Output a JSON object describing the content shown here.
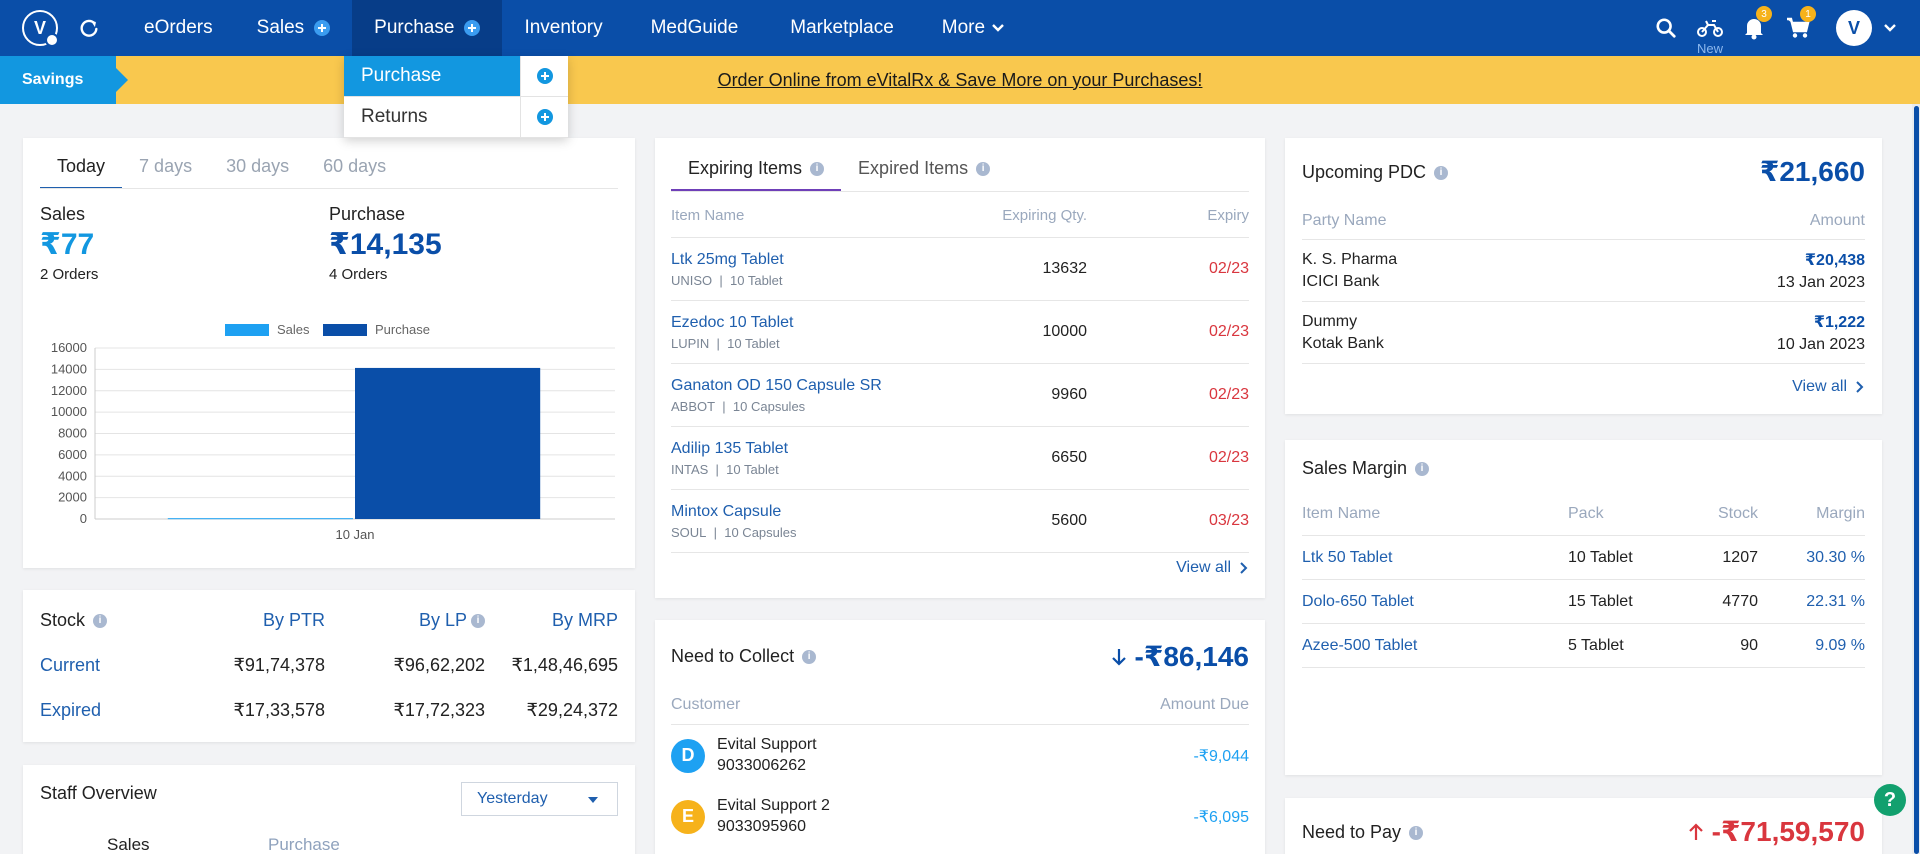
{
  "nav": {
    "items": [
      {
        "label": "eOrders"
      },
      {
        "label": "Sales"
      },
      {
        "label": "Purchase"
      },
      {
        "label": "Inventory"
      },
      {
        "label": "MedGuide"
      },
      {
        "label": "Marketplace"
      },
      {
        "label": "More"
      }
    ],
    "bike_new_label": "New",
    "notifications_count": "3",
    "cart_count": "1"
  },
  "banner": {
    "tag": "Savings",
    "text": "Order Online from eVitalRx & Save More on your Purchases!"
  },
  "dropdown": {
    "items": [
      {
        "label": "Purchase"
      },
      {
        "label": "Returns"
      }
    ]
  },
  "summary": {
    "tabs": [
      "Today",
      "7 days",
      "30 days",
      "60 days"
    ],
    "sales_label": "Sales",
    "sales_value": "₹77",
    "sales_orders": "2 Orders",
    "purchase_label": "Purchase",
    "purchase_value": "₹14,135",
    "purchase_orders": "4 Orders"
  },
  "chart_data": {
    "type": "bar",
    "categories": [
      "10 Jan"
    ],
    "series": [
      {
        "name": "Sales",
        "values": [
          77
        ],
        "color": "#1ea1f2"
      },
      {
        "name": "Purchase",
        "values": [
          14135
        ],
        "color": "#0a4ea8"
      }
    ],
    "ylim": [
      0,
      16000
    ],
    "yticks": [
      "0",
      "2000",
      "4000",
      "6000",
      "8000",
      "10000",
      "12000",
      "14000",
      "16000"
    ],
    "legend": "top-center",
    "grid": true
  },
  "stock": {
    "title": "Stock",
    "headers": [
      "By PTR",
      "By LP",
      "By MRP"
    ],
    "rows": [
      {
        "label": "Current",
        "ptr": "₹91,74,378",
        "lp": "₹96,62,202",
        "mrp": "₹1,48,46,695"
      },
      {
        "label": "Expired",
        "ptr": "₹17,33,578",
        "lp": "₹17,72,323",
        "mrp": "₹29,24,372"
      }
    ]
  },
  "staff": {
    "title": "Staff Overview",
    "period": "Yesterday",
    "col1": "Sales",
    "col2": "Purchase"
  },
  "expiring": {
    "tab1": "Expiring Items",
    "tab2": "Expired Items",
    "headers": [
      "Item Name",
      "Expiring Qty.",
      "Expiry"
    ],
    "rows": [
      {
        "name": "Ltk 25mg Tablet",
        "maker": "UNISO",
        "pack": "10 Tablet",
        "qty": "13632",
        "expiry": "02/23"
      },
      {
        "name": "Ezedoc 10 Tablet",
        "maker": "LUPIN",
        "pack": "10 Tablet",
        "qty": "10000",
        "expiry": "02/23"
      },
      {
        "name": "Ganaton OD 150 Capsule SR",
        "maker": "ABBOT",
        "pack": "10 Capsules",
        "qty": "9960",
        "expiry": "02/23"
      },
      {
        "name": "Adilip 135 Tablet",
        "maker": "INTAS",
        "pack": "10 Tablet",
        "qty": "6650",
        "expiry": "02/23"
      },
      {
        "name": "Mintox Capsule",
        "maker": "SOUL",
        "pack": "10 Capsules",
        "qty": "5600",
        "expiry": "03/23"
      }
    ],
    "view_all": "View all"
  },
  "collect": {
    "title": "Need to Collect",
    "total": "-₹86,146",
    "headers": [
      "Customer",
      "Amount Due"
    ],
    "rows": [
      {
        "initial": "D",
        "name": "Evital Support",
        "phone": "9033006262",
        "amount": "-₹9,044",
        "color": "#1ea1f2"
      },
      {
        "initial": "E",
        "name": "Evital Support 2",
        "phone": "9033095960",
        "amount": "-₹6,095",
        "color": "#f6b21b"
      }
    ]
  },
  "pdc": {
    "title": "Upcoming PDC",
    "total": "₹21,660",
    "headers": [
      "Party Name",
      "Amount"
    ],
    "rows": [
      {
        "party": "K. S. Pharma",
        "bank": "ICICI Bank",
        "amount": "₹20,438",
        "date": "13 Jan 2023"
      },
      {
        "party": "Dummy",
        "bank": "Kotak Bank",
        "amount": "₹1,222",
        "date": "10 Jan 2023"
      }
    ],
    "view_all": "View all"
  },
  "margin": {
    "title": "Sales Margin",
    "headers": [
      "Item Name",
      "Pack",
      "Stock",
      "Margin"
    ],
    "rows": [
      {
        "name": "Ltk 50 Tablet",
        "pack": "10 Tablet",
        "stock": "1207",
        "margin": "30.30 %"
      },
      {
        "name": "Dolo-650 Tablet",
        "pack": "15 Tablet",
        "stock": "4770",
        "margin": "22.31 %"
      },
      {
        "name": "Azee-500 Tablet",
        "pack": "5 Tablet",
        "stock": "90",
        "margin": "9.09 %"
      }
    ]
  },
  "pay": {
    "title": "Need to Pay",
    "total": "-₹71,59,570"
  },
  "help": "?"
}
